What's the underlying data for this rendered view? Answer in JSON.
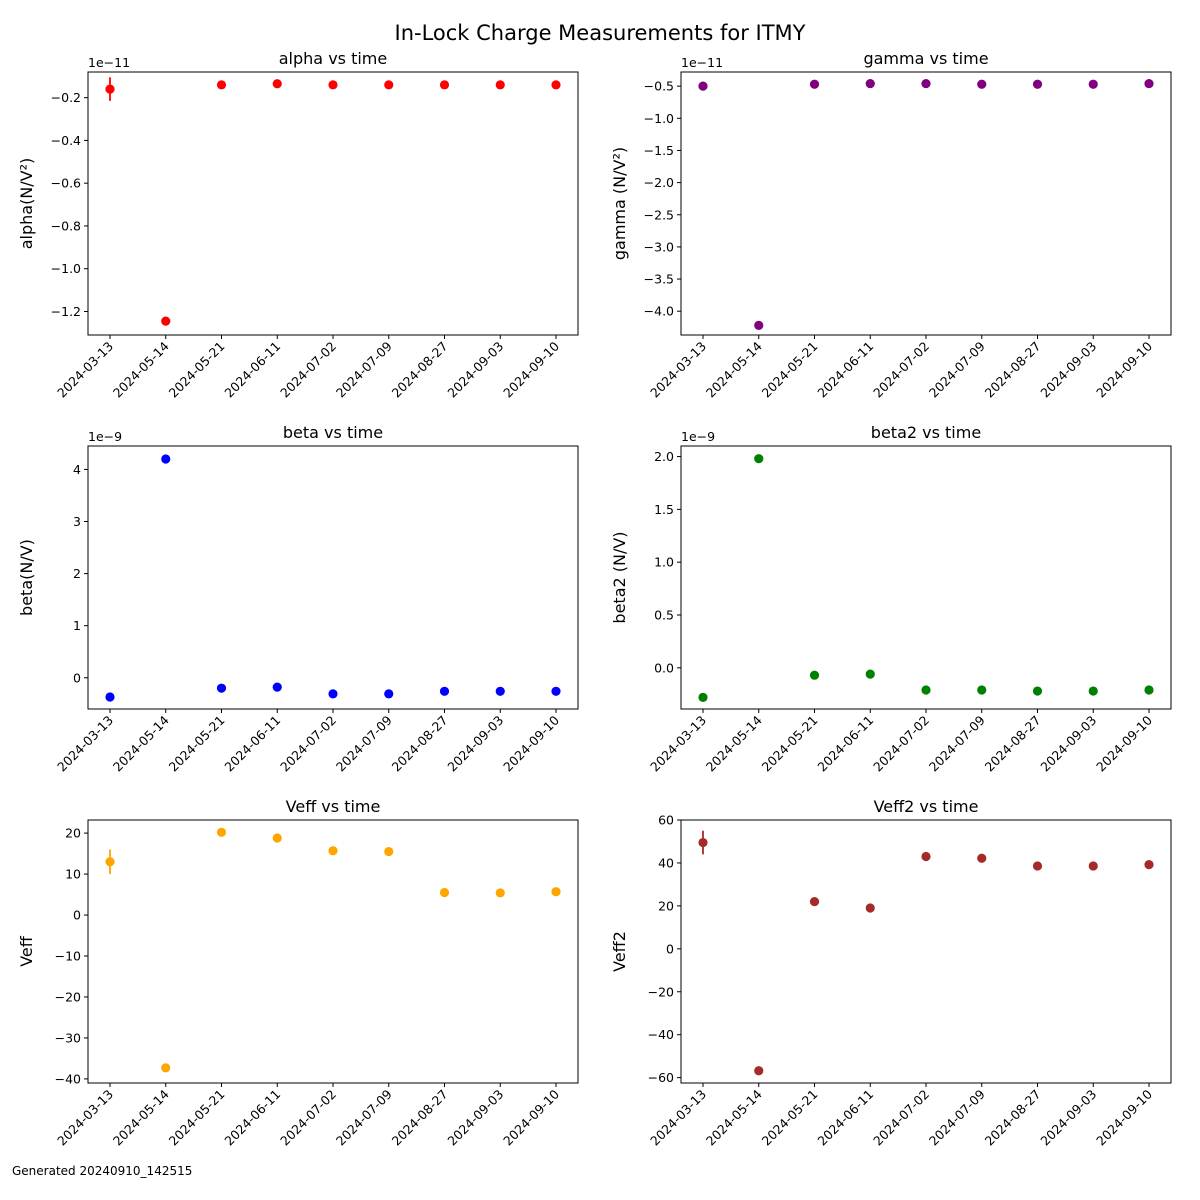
{
  "figure": {
    "title": "In-Lock Charge Measurements for ITMY",
    "footer": "Generated 20240910_142515"
  },
  "chart_data": [
    {
      "type": "scatter",
      "title": "alpha vs time",
      "ylabel": "alpha(N/V²)",
      "offset_label": "1e−11",
      "color": "#ff0000",
      "categories": [
        "2024-03-13",
        "2024-05-14",
        "2024-05-21",
        "2024-06-11",
        "2024-07-02",
        "2024-07-09",
        "2024-08-27",
        "2024-09-03",
        "2024-09-10"
      ],
      "values": [
        -0.16,
        -1.245,
        -0.14,
        -0.135,
        -0.14,
        -0.14,
        -0.14,
        -0.14,
        -0.14
      ],
      "errors": [
        0.055,
        0,
        0,
        0,
        0,
        0,
        0,
        0,
        0
      ],
      "ylim": [
        -1.31,
        -0.08
      ],
      "yticks": [
        -0.2,
        -0.4,
        -0.6,
        -0.8,
        -1.0,
        -1.2
      ],
      "ytick_labels": [
        "−0.2",
        "−0.4",
        "−0.6",
        "−0.8",
        "−1.0",
        "−1.2"
      ]
    },
    {
      "type": "scatter",
      "title": "gamma vs time",
      "ylabel": "gamma (N/V²)",
      "offset_label": "1e−11",
      "color": "#800080",
      "categories": [
        "2024-03-13",
        "2024-05-14",
        "2024-05-21",
        "2024-06-11",
        "2024-07-02",
        "2024-07-09",
        "2024-08-27",
        "2024-09-03",
        "2024-09-10"
      ],
      "values": [
        -0.5,
        -4.22,
        -0.47,
        -0.46,
        -0.46,
        -0.47,
        -0.47,
        -0.47,
        -0.46
      ],
      "errors": [
        0,
        0,
        0,
        0,
        0,
        0,
        0,
        0,
        0
      ],
      "ylim": [
        -4.37,
        -0.28
      ],
      "yticks": [
        -0.5,
        -1.0,
        -1.5,
        -2.0,
        -2.5,
        -3.0,
        -3.5,
        -4.0
      ],
      "ytick_labels": [
        "−0.5",
        "−1.0",
        "−1.5",
        "−2.0",
        "−2.5",
        "−3.0",
        "−3.5",
        "−4.0"
      ]
    },
    {
      "type": "scatter",
      "title": "beta vs time",
      "ylabel": "beta(N/V)",
      "offset_label": "1e−9",
      "color": "#0000ff",
      "categories": [
        "2024-03-13",
        "2024-05-14",
        "2024-05-21",
        "2024-06-11",
        "2024-07-02",
        "2024-07-09",
        "2024-08-27",
        "2024-09-03",
        "2024-09-10"
      ],
      "values": [
        -0.37,
        4.2,
        -0.2,
        -0.18,
        -0.31,
        -0.31,
        -0.26,
        -0.26,
        -0.26
      ],
      "errors": [
        0,
        0,
        0,
        0,
        0,
        0,
        0,
        0,
        0
      ],
      "ylim": [
        -0.6,
        4.45
      ],
      "yticks": [
        0,
        1,
        2,
        3,
        4
      ],
      "ytick_labels": [
        "0",
        "1",
        "2",
        "3",
        "4"
      ]
    },
    {
      "type": "scatter",
      "title": "beta2 vs time",
      "ylabel": "beta2 (N/V)",
      "offset_label": "1e−9",
      "color": "#008000",
      "categories": [
        "2024-03-13",
        "2024-05-14",
        "2024-05-21",
        "2024-06-11",
        "2024-07-02",
        "2024-07-09",
        "2024-08-27",
        "2024-09-03",
        "2024-09-10"
      ],
      "values": [
        -0.28,
        1.98,
        -0.07,
        -0.06,
        -0.21,
        -0.21,
        -0.22,
        -0.22,
        -0.21
      ],
      "errors": [
        0,
        0,
        0,
        0,
        0,
        0,
        0,
        0,
        0
      ],
      "ylim": [
        -0.39,
        2.1
      ],
      "yticks": [
        0.0,
        0.5,
        1.0,
        1.5,
        2.0
      ],
      "ytick_labels": [
        "0.0",
        "0.5",
        "1.0",
        "1.5",
        "2.0"
      ]
    },
    {
      "type": "scatter",
      "title": "Veff vs time",
      "ylabel": "Veff",
      "offset_label": "",
      "color": "#ffa500",
      "categories": [
        "2024-03-13",
        "2024-05-14",
        "2024-05-21",
        "2024-06-11",
        "2024-07-02",
        "2024-07-09",
        "2024-08-27",
        "2024-09-03",
        "2024-09-10"
      ],
      "values": [
        13,
        -37.3,
        20.2,
        18.8,
        15.7,
        15.5,
        5.5,
        5.4,
        5.7
      ],
      "errors": [
        3,
        0,
        0,
        0,
        0,
        0,
        0,
        0,
        0
      ],
      "ylim": [
        -41,
        23.2
      ],
      "yticks": [
        20,
        10,
        0,
        -10,
        -20,
        -30,
        -40
      ],
      "ytick_labels": [
        "20",
        "10",
        "0",
        "−10",
        "−20",
        "−30",
        "−40"
      ]
    },
    {
      "type": "scatter",
      "title": "Veff2 vs time",
      "ylabel": "Veff2",
      "offset_label": "",
      "color": "#a52a2a",
      "categories": [
        "2024-03-13",
        "2024-05-14",
        "2024-05-21",
        "2024-06-11",
        "2024-07-02",
        "2024-07-09",
        "2024-08-27",
        "2024-09-03",
        "2024-09-10"
      ],
      "values": [
        49.5,
        -56.8,
        22,
        19,
        43,
        42.2,
        38.6,
        38.6,
        39.2
      ],
      "errors": [
        5.5,
        0,
        0,
        0,
        0,
        0,
        0,
        0,
        0
      ],
      "ylim": [
        -62.5,
        60
      ],
      "yticks": [
        60,
        40,
        20,
        0,
        -20,
        -40,
        -60
      ],
      "ytick_labels": [
        "60",
        "40",
        "20",
        "0",
        "−20",
        "−40",
        "−60"
      ]
    }
  ]
}
